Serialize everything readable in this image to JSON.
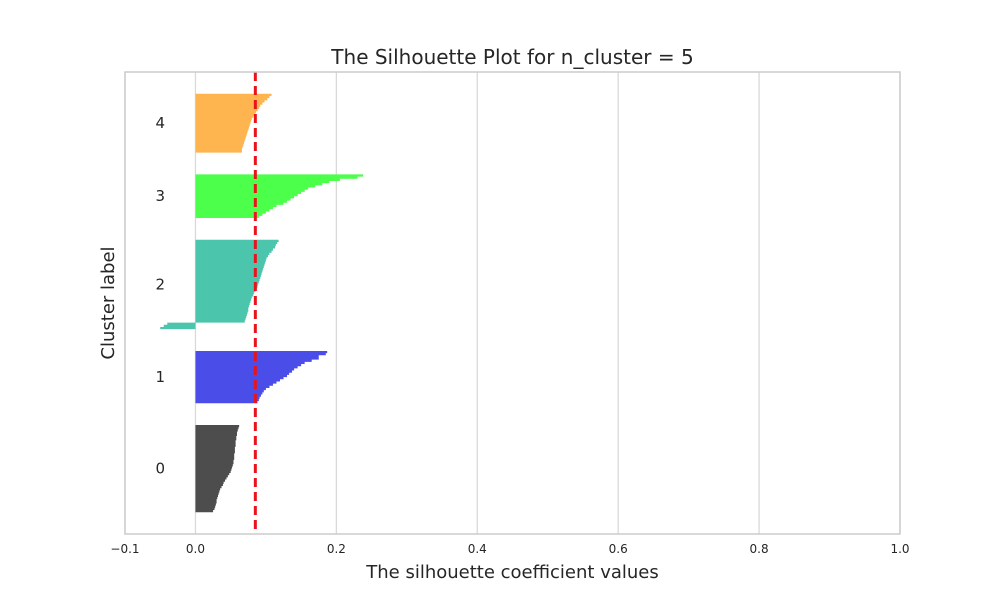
{
  "chart_data": {
    "type": "silhouette",
    "title": "The Silhouette Plot for n_cluster = 5",
    "xlabel": "The silhouette coefficient values",
    "ylabel": "Cluster label",
    "xlim": [
      -0.1,
      1.0
    ],
    "xticks": [
      -0.1,
      0.0,
      0.2,
      0.4,
      0.6,
      0.8,
      1.0
    ],
    "xtick_labels": [
      "−0.1",
      "0.0",
      "0.2",
      "0.4",
      "0.6",
      "0.8",
      "1.0"
    ],
    "grid": true,
    "average_silhouette_score": 0.085,
    "clusters": [
      {
        "label": "0",
        "color": "#4d4d4d",
        "values": [
          0.062,
          0.061,
          0.06,
          0.059,
          0.059,
          0.058,
          0.058,
          0.057,
          0.057,
          0.057,
          0.056,
          0.056,
          0.056,
          0.055,
          0.055,
          0.055,
          0.054,
          0.054,
          0.053,
          0.052,
          0.051,
          0.05,
          0.048,
          0.046,
          0.044,
          0.042,
          0.04,
          0.039,
          0.037,
          0.035,
          0.034,
          0.033,
          0.032,
          0.031,
          0.03,
          0.03,
          0.029,
          0.028,
          0.027,
          0.025
        ]
      },
      {
        "label": "1",
        "color": "#4b4de8",
        "values": [
          0.187,
          0.185,
          0.175,
          0.175,
          0.165,
          0.155,
          0.15,
          0.145,
          0.14,
          0.137,
          0.133,
          0.13,
          0.125,
          0.12,
          0.115,
          0.11,
          0.105,
          0.1,
          0.097,
          0.095,
          0.093,
          0.091,
          0.09,
          0.088
        ]
      },
      {
        "label": "2",
        "color": "#4cc5ad",
        "values": [
          0.118,
          0.116,
          0.114,
          0.113,
          0.11,
          0.108,
          0.105,
          0.103,
          0.101,
          0.1,
          0.099,
          0.098,
          0.097,
          0.096,
          0.095,
          0.094,
          0.093,
          0.092,
          0.091,
          0.09,
          0.089,
          0.088,
          0.087,
          0.085,
          0.083,
          0.082,
          0.08,
          0.079,
          0.078,
          0.077,
          0.076,
          0.075,
          0.075,
          0.074,
          0.073,
          0.072,
          0.071,
          0.07,
          -0.04,
          -0.045,
          -0.05
        ]
      },
      {
        "label": "3",
        "color": "#4bff4b",
        "values": [
          0.238,
          0.23,
          0.205,
          0.19,
          0.18,
          0.17,
          0.16,
          0.155,
          0.15,
          0.145,
          0.14,
          0.135,
          0.13,
          0.125,
          0.115,
          0.11,
          0.105,
          0.1,
          0.095,
          0.09
        ]
      },
      {
        "label": "4",
        "color": "#ffb54f",
        "values": [
          0.108,
          0.105,
          0.102,
          0.098,
          0.095,
          0.092,
          0.09,
          0.088,
          0.086,
          0.084,
          0.082,
          0.08,
          0.079,
          0.078,
          0.077,
          0.076,
          0.075,
          0.074,
          0.073,
          0.072,
          0.071,
          0.07,
          0.069,
          0.068,
          0.067,
          0.066,
          0.066
        ]
      }
    ]
  }
}
